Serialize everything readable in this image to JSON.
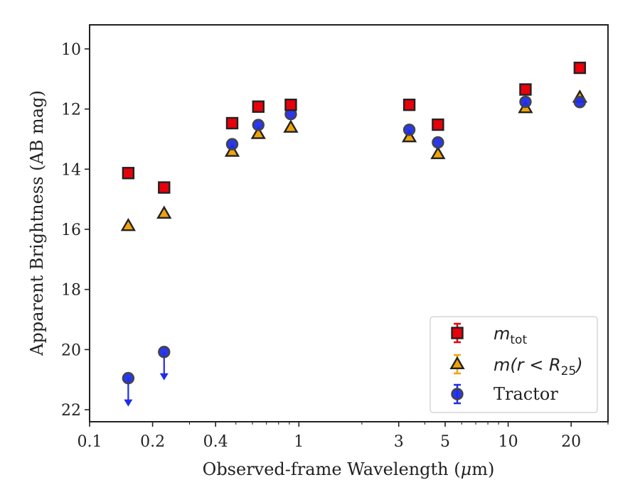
{
  "chart_data": {
    "type": "scatter",
    "title": "",
    "xlabel_text": "Observed-frame Wavelength (",
    "xlabel_mu": "μ",
    "xlabel_tail": "m)",
    "ylabel": "Apparent Brightness (AB mag)",
    "xscale": "log",
    "xlim": [
      0.1,
      30
    ],
    "ylim": [
      22.4,
      9.2
    ],
    "y_inverted": true,
    "grid": false,
    "legend_placement": "lower-right",
    "x_ticks": [
      {
        "value": 0.1,
        "label": "0.1"
      },
      {
        "value": 0.2,
        "label": "0.2"
      },
      {
        "value": 0.4,
        "label": "0.4"
      },
      {
        "value": 1,
        "label": "1"
      },
      {
        "value": 3,
        "label": "3"
      },
      {
        "value": 5,
        "label": "5"
      },
      {
        "value": 10,
        "label": "10"
      },
      {
        "value": 20,
        "label": "20"
      }
    ],
    "y_ticks": [
      {
        "value": 10,
        "label": "10"
      },
      {
        "value": 12,
        "label": "12"
      },
      {
        "value": 14,
        "label": "14"
      },
      {
        "value": 16,
        "label": "16"
      },
      {
        "value": 18,
        "label": "18"
      },
      {
        "value": 20,
        "label": "20"
      },
      {
        "value": 22,
        "label": "22"
      }
    ],
    "series": [
      {
        "legend_main": "m",
        "legend_sub": "tot",
        "marker": "square",
        "color": "#e8000b",
        "edge_color": "#222222",
        "points": [
          {
            "x": 0.153,
            "y": 14.13
          },
          {
            "x": 0.227,
            "y": 14.61
          },
          {
            "x": 0.48,
            "y": 12.47
          },
          {
            "x": 0.64,
            "y": 11.92
          },
          {
            "x": 0.915,
            "y": 11.86
          },
          {
            "x": 3.37,
            "y": 11.86
          },
          {
            "x": 4.62,
            "y": 12.52
          },
          {
            "x": 12.1,
            "y": 11.35
          },
          {
            "x": 22.0,
            "y": 10.63
          }
        ]
      },
      {
        "legend_main": "m(r < R",
        "legend_sub": "25",
        "legend_tail": ")",
        "marker": "triangle",
        "color": "#f0a30a",
        "edge_color": "#222222",
        "points": [
          {
            "x": 0.153,
            "y": 15.89
          },
          {
            "x": 0.227,
            "y": 15.48
          },
          {
            "x": 0.48,
            "y": 13.42
          },
          {
            "x": 0.64,
            "y": 12.83
          },
          {
            "x": 0.915,
            "y": 12.62
          },
          {
            "x": 3.37,
            "y": 12.94
          },
          {
            "x": 4.62,
            "y": 13.5
          },
          {
            "x": 12.1,
            "y": 11.97
          },
          {
            "x": 22.0,
            "y": 11.62
          }
        ]
      },
      {
        "name": "Tractor",
        "marker": "circle",
        "color": "#1f2de8",
        "edge_color": "#444444",
        "points": [
          {
            "x": 0.153,
            "y": 20.95,
            "upper_limit": true
          },
          {
            "x": 0.227,
            "y": 20.08,
            "upper_limit": true
          },
          {
            "x": 0.48,
            "y": 13.17
          },
          {
            "x": 0.64,
            "y": 12.53
          },
          {
            "x": 0.915,
            "y": 12.17
          },
          {
            "x": 3.37,
            "y": 12.69
          },
          {
            "x": 4.62,
            "y": 13.11
          },
          {
            "x": 12.1,
            "y": 11.76
          },
          {
            "x": 22.0,
            "y": 11.77
          }
        ]
      }
    ]
  }
}
